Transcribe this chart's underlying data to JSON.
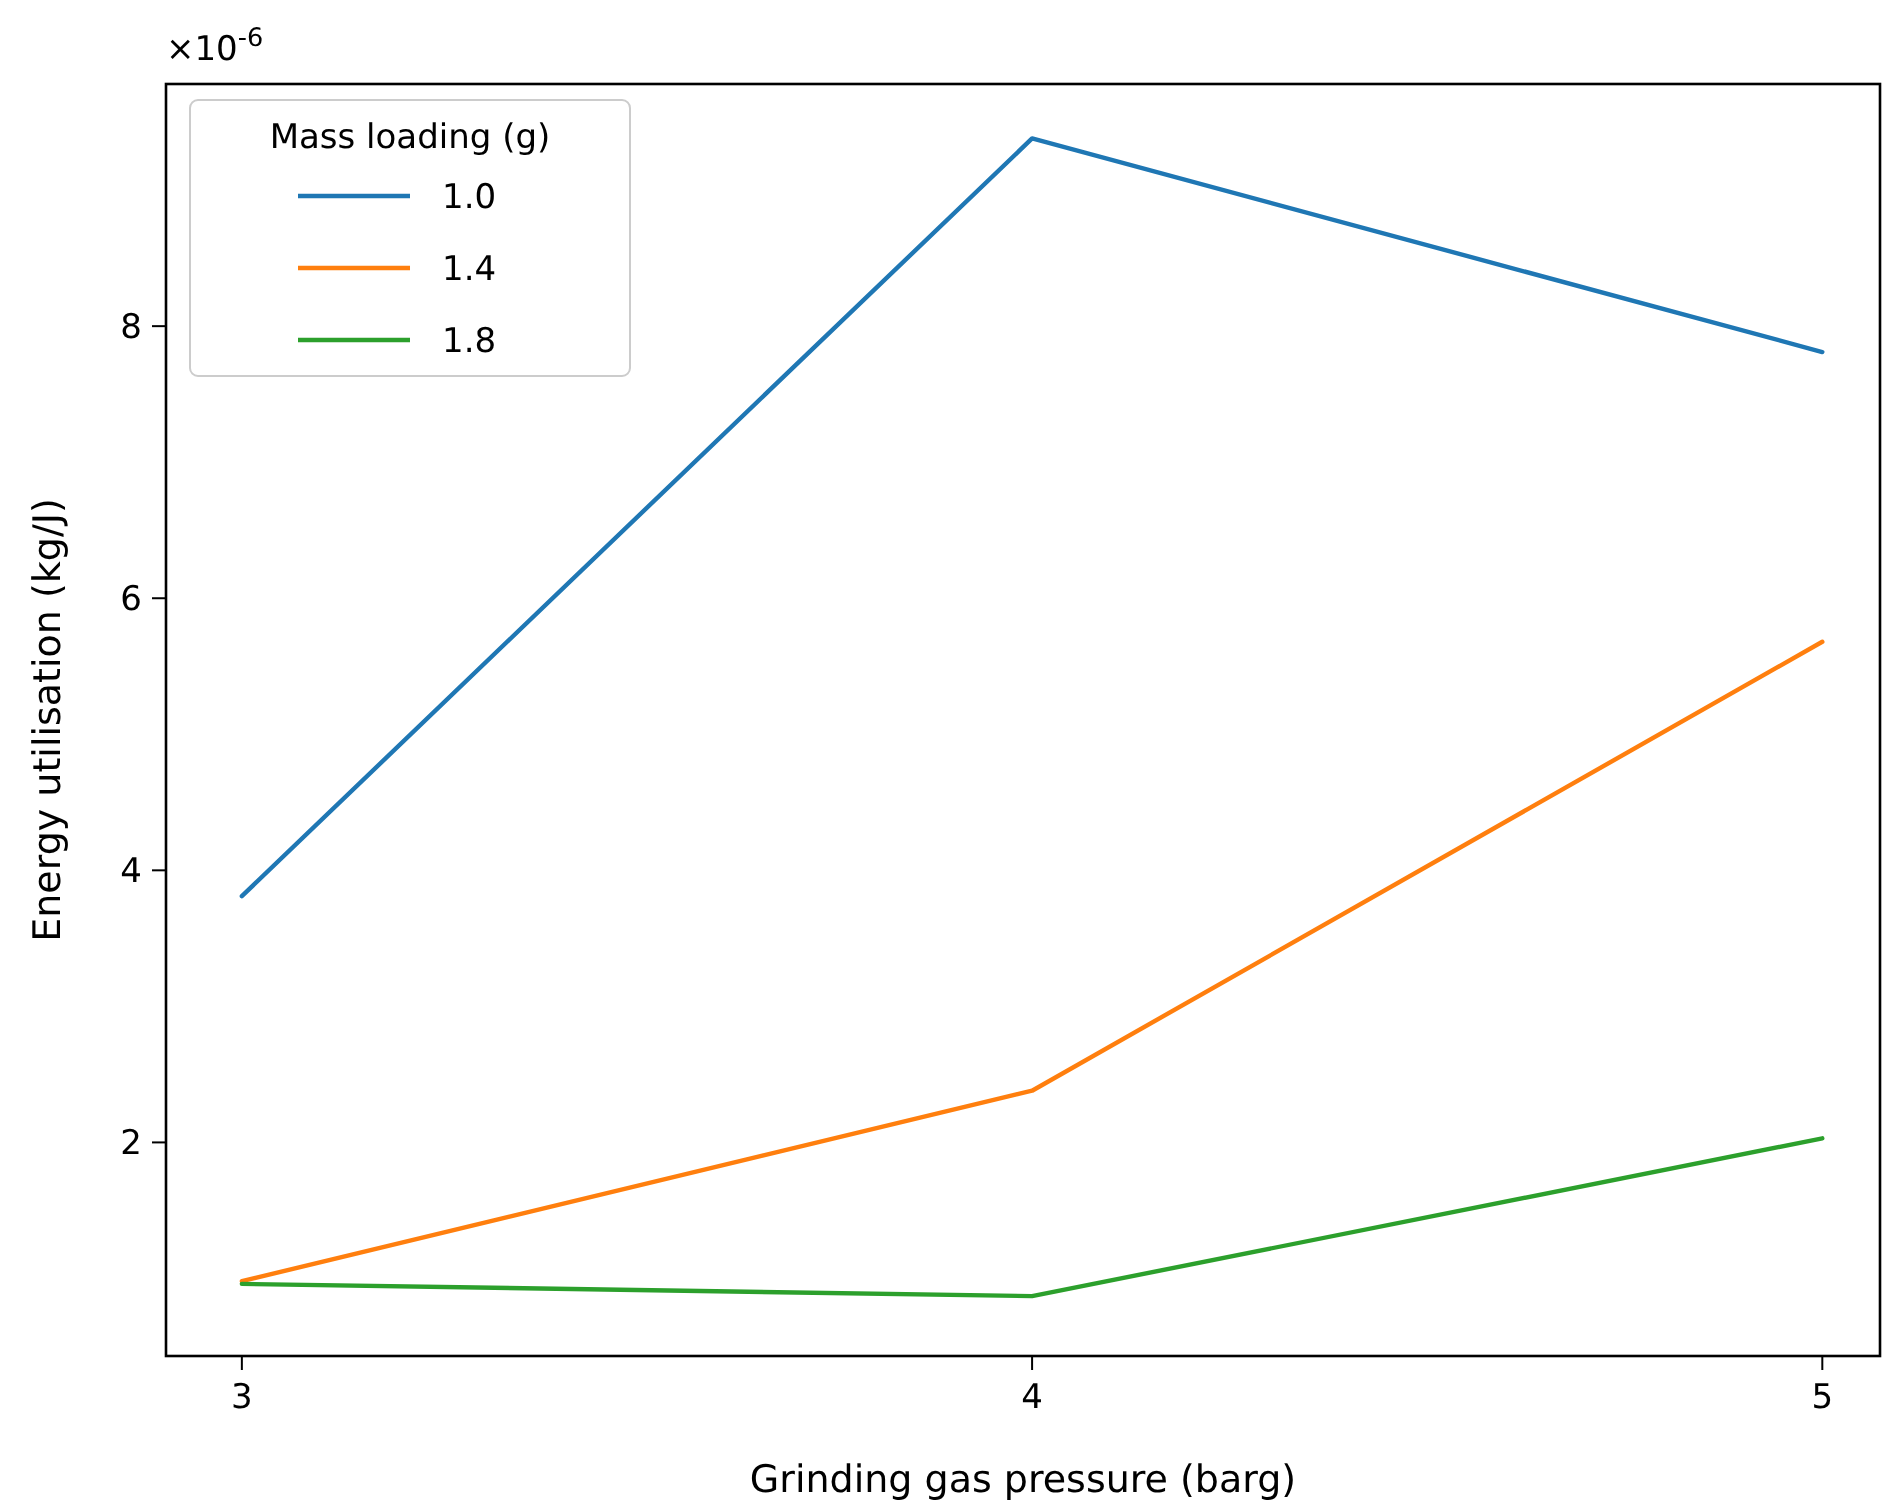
{
  "chart_data": {
    "type": "line",
    "xlabel": "Grinding gas pressure (barg)",
    "ylabel": "Energy utilisation (kg/J)",
    "legend_title": "Mass loading (g)",
    "annotations": [
      "×10$^{-6}$"
    ],
    "x": [
      3,
      4,
      5
    ],
    "xlim": [
      2.904,
      5.073
    ],
    "xticks": [
      3,
      4,
      5
    ],
    "ylim": [
      0.43,
      9.78
    ],
    "yticks": [
      2,
      4,
      6,
      8
    ],
    "legend": "top left",
    "grid": false,
    "line_style": "solid",
    "marker": "none",
    "series": [
      {
        "name": "1.0",
        "color": "#1f77b4",
        "values": [
          3.81,
          9.38,
          7.81
        ]
      },
      {
        "name": "1.4",
        "color": "#ff7f0e",
        "values": [
          0.98,
          2.38,
          5.68
        ]
      },
      {
        "name": "1.8",
        "color": "#2ca02c",
        "values": [
          0.96,
          0.87,
          2.03
        ]
      }
    ]
  }
}
